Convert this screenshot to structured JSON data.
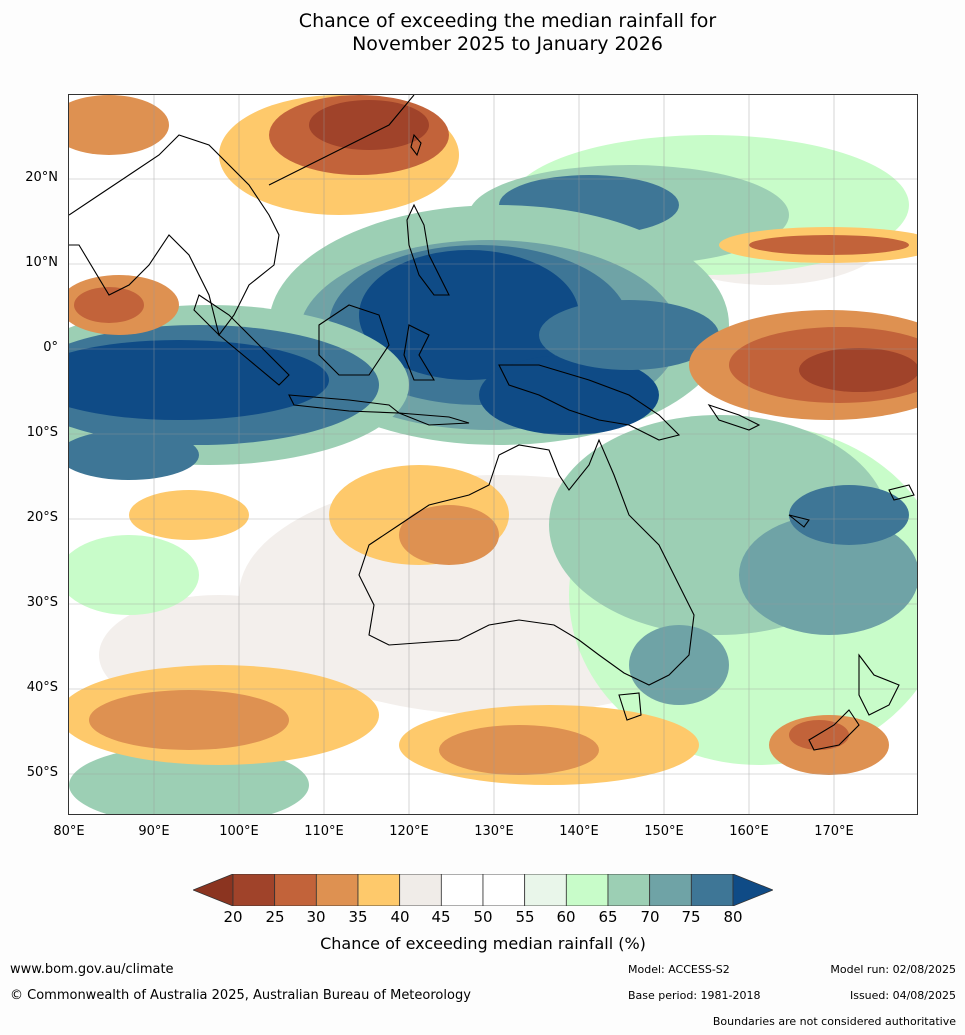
{
  "title_line1": "Chance of exceeding the median rainfall for",
  "title_line2": "November 2025 to January 2026",
  "map": {
    "lat_labels": [
      "20°N",
      "10°N",
      "0°",
      "10°S",
      "20°S",
      "30°S",
      "40°S",
      "50°S"
    ],
    "lon_labels": [
      "80°E",
      "90°E",
      "100°E",
      "110°E",
      "120°E",
      "130°E",
      "140°E",
      "150°E",
      "160°E",
      "170°E"
    ],
    "lat_range": [
      -55,
      30
    ],
    "lon_range": [
      80,
      180
    ]
  },
  "colorbar": {
    "ticks": [
      "20",
      "25",
      "30",
      "35",
      "40",
      "45",
      "50",
      "55",
      "60",
      "65",
      "70",
      "75",
      "80"
    ],
    "colors": [
      "#a0432a",
      "#c2633a",
      "#de9151",
      "#fec96b",
      "#f0ece8",
      "#ffffff",
      "#ffffff",
      "#e9f6ea",
      "#c8fcc9",
      "#9ccfb4",
      "#6fa3a6",
      "#3e7696"
    ],
    "under_color": "#8b3420",
    "over_color": "#0f4b86",
    "label": "Chance of exceeding median rainfall (%)"
  },
  "footer": {
    "website": "www.bom.gov.au/climate",
    "copyright": "© Commonwealth of Australia 2025, Australian Bureau of Meteorology",
    "model": "Model: ACCESS-S2",
    "base_period": "Base period: 1981-2018",
    "model_run": "Model run: 02/08/2025",
    "issued": "Issued: 04/08/2025",
    "boundaries_note": "Boundaries are not considered authoritative"
  }
}
